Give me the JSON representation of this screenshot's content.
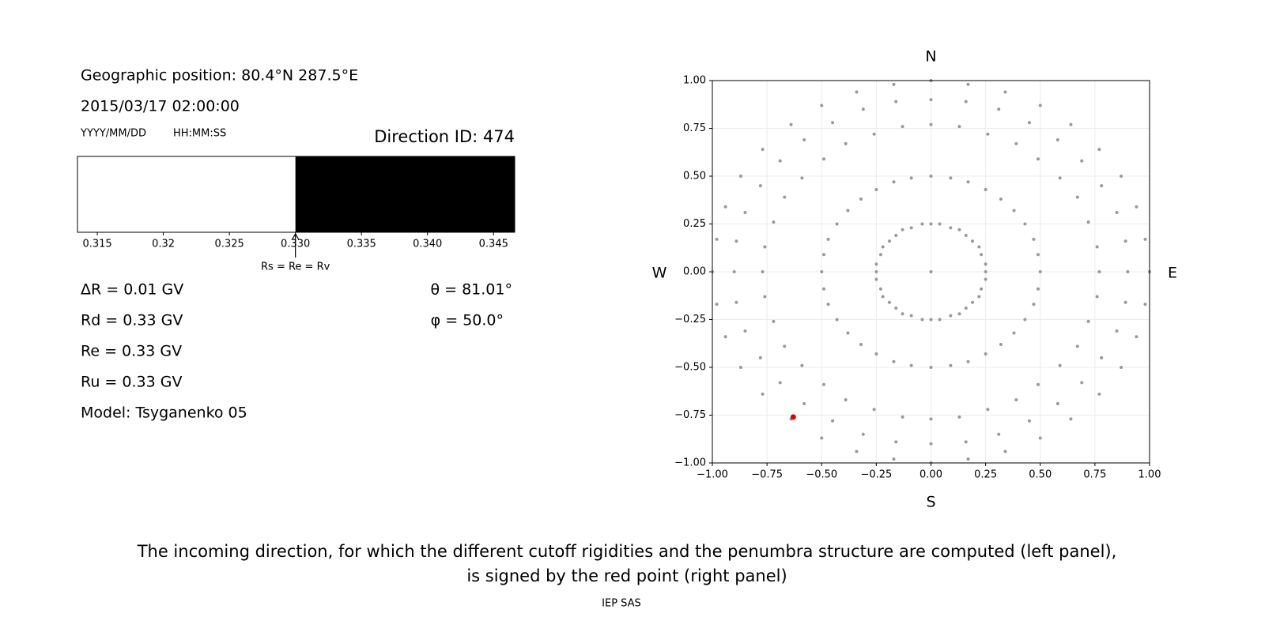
{
  "info": {
    "position": "Geographic position: 80.4°N 287.5°E",
    "datetime": "2015/03/17 02:00:00",
    "date_format": "YYYY/MM/DD",
    "time_format": "HH:MM:SS",
    "direction_id": "Direction ID: 474"
  },
  "rigidities": [
    "ΔR = 0.01 GV",
    "Rd = 0.33 GV",
    "Re = 0.33 GV",
    "Ru = 0.33 GV",
    "Model: Tsyganenko 05"
  ],
  "angles": [
    "θ = 81.01°",
    "φ = 50.0°"
  ],
  "chart_data": [
    {
      "type": "penumbra",
      "xlim": [
        0.3135,
        0.3466
      ],
      "xticks": [
        0.315,
        0.32,
        0.325,
        {
          "value": 0.33,
          "label": "0.330"
        },
        0.335,
        {
          "value": 0.34,
          "label": "0.340"
        },
        0.345
      ],
      "segments": [
        {
          "start": 0.3135,
          "end": 0.33,
          "color": "#ffffff"
        },
        {
          "start": 0.33,
          "end": 0.3466,
          "color": "#000000"
        }
      ],
      "annotation": {
        "text": "Rs = Re = Rv",
        "x": 0.33
      }
    },
    {
      "type": "scatter",
      "xlim": [
        -1,
        1
      ],
      "ylim": [
        -1,
        1
      ],
      "xticks": [
        {
          "value": -1,
          "label": "−1.00"
        },
        {
          "value": -0.75,
          "label": "−0.75"
        },
        {
          "value": -0.5,
          "label": "−0.50"
        },
        {
          "value": -0.25,
          "label": "−0.25"
        },
        {
          "value": 0,
          "label": "0.00"
        },
        {
          "value": 0.25,
          "label": "0.25"
        },
        {
          "value": 0.5,
          "label": "0.50"
        },
        {
          "value": 0.75,
          "label": "0.75"
        },
        {
          "value": 1,
          "label": "1.00"
        }
      ],
      "yticks": [
        {
          "value": -1,
          "label": "−1.00"
        },
        {
          "value": -0.75,
          "label": "−0.75"
        },
        {
          "value": -0.5,
          "label": "−0.50"
        },
        {
          "value": -0.25,
          "label": "−0.25"
        },
        {
          "value": 0,
          "label": "0.00"
        },
        {
          "value": 0.25,
          "label": "0.25"
        },
        {
          "value": 0.5,
          "label": "0.50"
        },
        {
          "value": 0.75,
          "label": "0.75"
        },
        {
          "value": 1,
          "label": "1.00"
        }
      ],
      "grid": true,
      "color": "#999999",
      "compass": {
        "north": "N",
        "south": "S",
        "west": "W",
        "east": "E"
      },
      "x": [
        0,
        0.04,
        0.09,
        0.13,
        0.16,
        0.19,
        0.22,
        0.23,
        0.25,
        0.25,
        0.25,
        0.23,
        0.22,
        0.19,
        0.16,
        0.13,
        0.09,
        0.04,
        0,
        -0.04,
        -0.09,
        -0.13,
        -0.16,
        -0.19,
        -0.22,
        -0.23,
        -0.25,
        -0.25,
        -0.25,
        -0.23,
        -0.22,
        -0.19,
        -0.16,
        -0.13,
        -0.09,
        -0.04,
        0,
        0.09,
        0.17,
        0.25,
        0.32,
        0.38,
        0.43,
        0.47,
        0.49,
        0.5,
        0.49,
        0.47,
        0.43,
        0.38,
        0.32,
        0.25,
        0.17,
        0.09,
        0,
        -0.09,
        -0.17,
        -0.25,
        -0.32,
        -0.38,
        -0.43,
        -0.47,
        -0.49,
        -0.5,
        -0.49,
        -0.47,
        -0.43,
        -0.38,
        -0.32,
        -0.25,
        -0.17,
        -0.09,
        0,
        0.13,
        0.26,
        0.39,
        0.49,
        0.59,
        0.67,
        0.72,
        0.76,
        0.77,
        0.76,
        0.72,
        0.67,
        0.59,
        0.49,
        0.39,
        0.26,
        0.13,
        0,
        -0.13,
        -0.26,
        -0.39,
        -0.49,
        -0.59,
        -0.67,
        -0.72,
        -0.76,
        -0.77,
        -0.76,
        -0.72,
        -0.67,
        -0.59,
        -0.49,
        -0.39,
        -0.26,
        -0.13,
        0,
        0.16,
        0.31,
        0.45,
        0.58,
        0.69,
        0.78,
        0.85,
        0.89,
        0.9,
        0.89,
        0.85,
        0.78,
        0.69,
        0.58,
        0.45,
        0.31,
        0.16,
        0,
        -0.16,
        -0.31,
        -0.45,
        -0.58,
        -0.69,
        -0.78,
        -0.85,
        -0.89,
        -0.9,
        -0.89,
        -0.85,
        -0.78,
        -0.69,
        -0.58,
        -0.45,
        -0.31,
        -0.16,
        0,
        0.17,
        0.34,
        0.5,
        0.64,
        0.77,
        0.87,
        0.94,
        0.98,
        1,
        0.98,
        0.94,
        0.87,
        0.77,
        0.64,
        0.5,
        0.34,
        0.17,
        0,
        -0.17,
        -0.34,
        -0.5,
        -0.64,
        -0.77,
        -0.87,
        -0.94,
        -0.98,
        -1,
        -0.98,
        -0.94,
        -0.87,
        -0.77,
        -0.64,
        -0.5,
        -0.34,
        -0.17,
        0
      ],
      "y": [
        0.25,
        0.25,
        0.23,
        0.22,
        0.19,
        0.16,
        0.13,
        0.09,
        0.04,
        0,
        -0.04,
        -0.09,
        -0.13,
        -0.16,
        -0.19,
        -0.22,
        -0.23,
        -0.25,
        -0.25,
        -0.25,
        -0.23,
        -0.22,
        -0.19,
        -0.16,
        -0.13,
        -0.09,
        -0.04,
        0,
        0.04,
        0.09,
        0.13,
        0.16,
        0.19,
        0.22,
        0.23,
        0.25,
        0.5,
        0.49,
        0.47,
        0.43,
        0.38,
        0.32,
        0.25,
        0.17,
        0.09,
        0,
        -0.09,
        -0.17,
        -0.25,
        -0.32,
        -0.38,
        -0.43,
        -0.47,
        -0.49,
        -0.5,
        -0.49,
        -0.47,
        -0.43,
        -0.38,
        -0.32,
        -0.25,
        -0.17,
        -0.09,
        0,
        0.09,
        0.17,
        0.25,
        0.32,
        0.38,
        0.43,
        0.47,
        0.49,
        0.77,
        0.76,
        0.72,
        0.67,
        0.59,
        0.49,
        0.39,
        0.26,
        0.13,
        0,
        -0.13,
        -0.26,
        -0.39,
        -0.49,
        -0.59,
        -0.67,
        -0.72,
        -0.76,
        -0.77,
        -0.76,
        -0.72,
        -0.67,
        -0.59,
        -0.49,
        -0.39,
        -0.26,
        -0.13,
        0,
        0.13,
        0.26,
        0.39,
        0.49,
        0.59,
        0.67,
        0.72,
        0.76,
        0.9,
        0.89,
        0.85,
        0.78,
        0.69,
        0.58,
        0.45,
        0.31,
        0.16,
        0,
        -0.16,
        -0.31,
        -0.45,
        -0.58,
        -0.69,
        -0.78,
        -0.85,
        -0.89,
        -0.9,
        -0.89,
        -0.85,
        -0.78,
        -0.69,
        -0.58,
        -0.45,
        -0.31,
        -0.16,
        0,
        0.16,
        0.31,
        0.45,
        0.58,
        0.69,
        0.78,
        0.85,
        0.89,
        1,
        0.98,
        0.94,
        0.87,
        0.77,
        0.64,
        0.5,
        0.34,
        0.17,
        0,
        -0.17,
        -0.34,
        -0.5,
        -0.64,
        -0.77,
        -0.87,
        -0.94,
        -0.98,
        -1,
        -0.98,
        -0.94,
        -0.87,
        -0.77,
        -0.64,
        -0.5,
        -0.34,
        -0.17,
        0,
        0.17,
        0.34,
        0.5,
        0.64,
        0.77,
        0.87,
        0.94,
        0.98,
        0
      ],
      "highlight": {
        "x": -0.63,
        "y": -0.76,
        "color": "#e00000"
      }
    }
  ],
  "caption": [
    "The incoming direction, for which the different cutoff rigidities and the penumbra structure are computed (left panel),",
    "is signed by the red point (right panel)"
  ],
  "credit": "IEP SAS"
}
